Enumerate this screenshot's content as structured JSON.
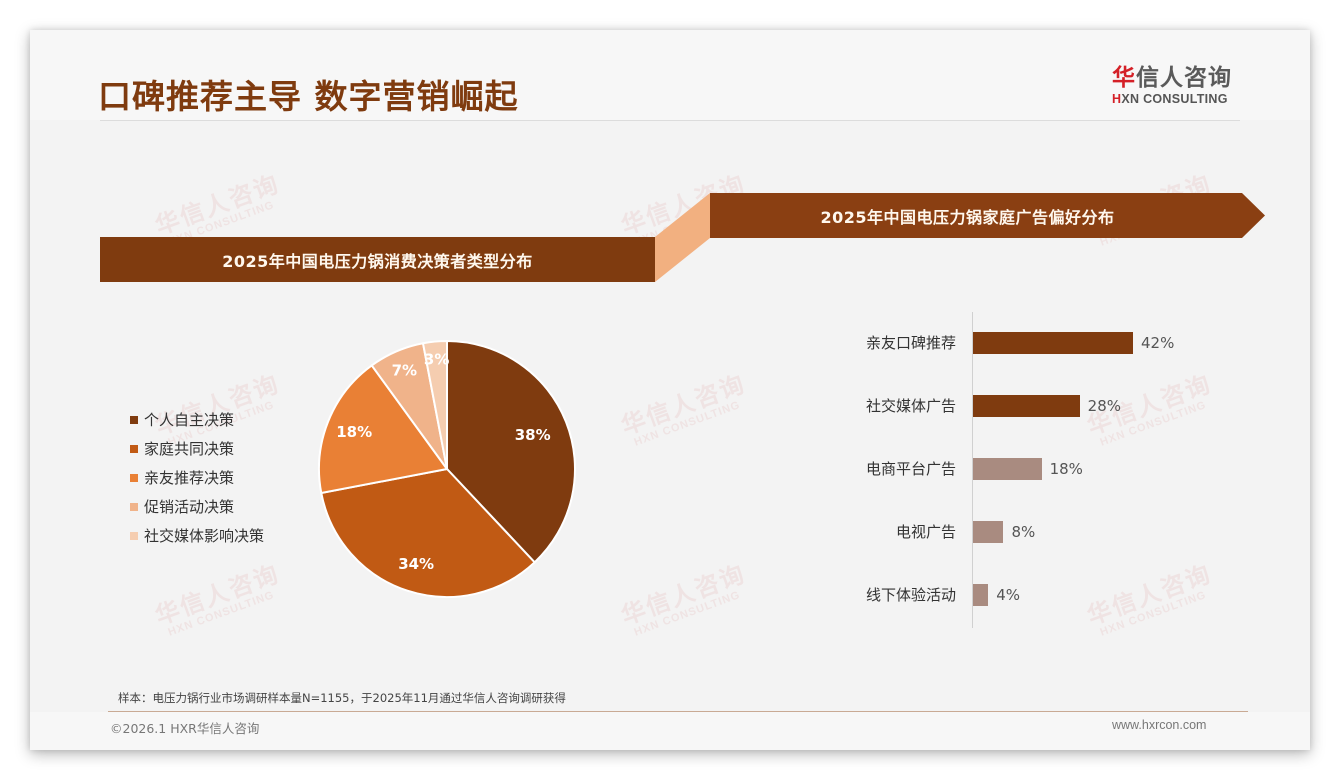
{
  "header": {
    "title": "口碑推荐主导 数字营销崛起",
    "logo": {
      "hua": "华",
      "cn_rest": "信人咨询",
      "en_h": "H",
      "en_rest": "XN CONSULTING"
    }
  },
  "watermark": {
    "cn": "华信人咨询",
    "en": "HXN CONSULTING"
  },
  "colors": {
    "title": "#7f3b0f",
    "banner": "#7f3b0f",
    "connector": "#f2b080",
    "pie": [
      "#7f3b0f",
      "#c15a14",
      "#e98035",
      "#f0b38a",
      "#f5cdb0"
    ],
    "bar_top": "#7f3b0f",
    "bar_rest": "#a98b80"
  },
  "left_panel": {
    "banner_title": "2025年中国电压力锅消费决策者类型分布",
    "legend": [
      {
        "label": "个人自主决策",
        "color": "#7f3b0f"
      },
      {
        "label": "家庭共同决策",
        "color": "#c15a14"
      },
      {
        "label": "亲友推荐决策",
        "color": "#e98035"
      },
      {
        "label": "促销活动决策",
        "color": "#f0b38a"
      },
      {
        "label": "社交媒体影响决策",
        "color": "#f5cdb0"
      }
    ]
  },
  "right_panel": {
    "banner_title": "2025年中国电压力锅家庭广告偏好分布"
  },
  "chart_data": [
    {
      "type": "pie",
      "title": "2025年中国电压力锅消费决策者类型分布",
      "categories": [
        "个人自主决策",
        "家庭共同决策",
        "亲友推荐决策",
        "促销活动决策",
        "社交媒体影响决策"
      ],
      "values": [
        38,
        34,
        18,
        7,
        3
      ],
      "labels": [
        "38%",
        "34%",
        "18%",
        "7%",
        "3%"
      ],
      "colors": [
        "#7f3b0f",
        "#c15a14",
        "#e98035",
        "#f0b38a",
        "#f5cdb0"
      ],
      "legend_position": "left",
      "start_angle": "12 o'clock, clockwise"
    },
    {
      "type": "bar",
      "orientation": "horizontal",
      "title": "2025年中国电压力锅家庭广告偏好分布",
      "categories": [
        "亲友口碑推荐",
        "社交媒体广告",
        "电商平台广告",
        "电视广告",
        "线下体验活动"
      ],
      "values": [
        42,
        28,
        18,
        8,
        4
      ],
      "labels": [
        "42%",
        "28%",
        "18%",
        "8%",
        "4%"
      ],
      "colors": [
        "#7f3b0f",
        "#7f3b0f",
        "#a98b80",
        "#a98b80",
        "#a98b80"
      ],
      "xlabel": "",
      "ylabel": "",
      "grid": false
    }
  ],
  "footer": {
    "note": "样本：电压力锅行业市场调研样本量N=1155，于2025年11月通过华信人咨询调研获得",
    "copyright": "©2026.1 HXR华信人咨询",
    "website": "www.hxrcon.com"
  }
}
